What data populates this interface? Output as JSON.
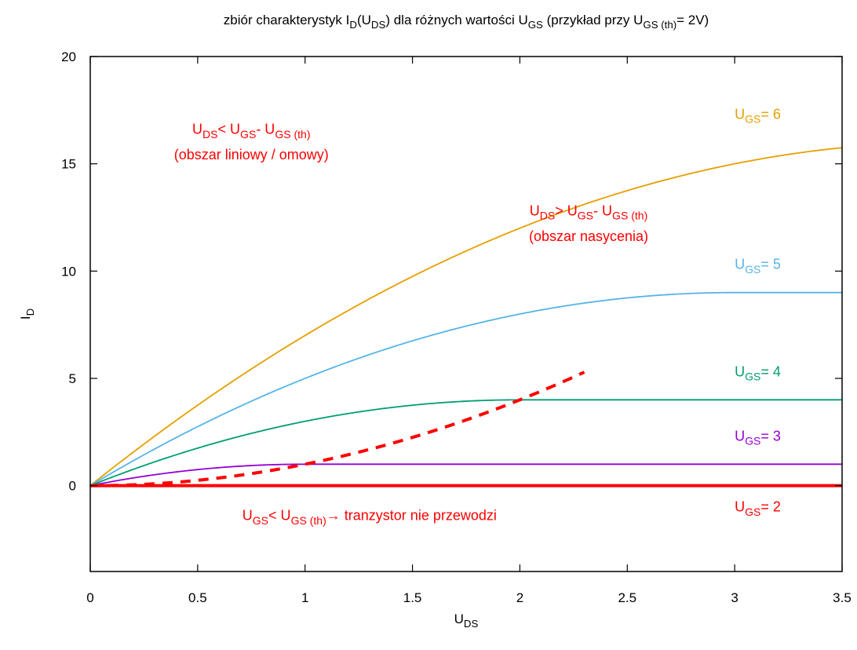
{
  "chart_data": {
    "type": "line",
    "title": {
      "parts": [
        {
          "t": "zbiór charakterystyk I"
        },
        {
          "t": "D",
          "sub": true
        },
        {
          "t": "(U"
        },
        {
          "t": "DS",
          "sub": true
        },
        {
          "t": ") dla różnych wartości U"
        },
        {
          "t": "GS",
          "sub": true
        },
        {
          "t": "  (przykład przy U"
        },
        {
          "t": "GS (th)",
          "sub": true
        },
        {
          "t": "= 2V)"
        }
      ]
    },
    "xlabel": {
      "main": "U",
      "sub": "DS"
    },
    "ylabel": {
      "main": "I",
      "sub": "D"
    },
    "xlim": [
      0,
      3.5
    ],
    "ylim": [
      -4,
      20
    ],
    "x_ticks": [
      0,
      0.5,
      1,
      1.5,
      2,
      2.5,
      3,
      3.5
    ],
    "x_tick_labels": [
      "0",
      "0.5",
      "1",
      "1.5",
      "2",
      "2.5",
      "3",
      "3.5"
    ],
    "y_ticks": [
      0,
      5,
      10,
      15,
      20
    ],
    "y_tick_labels": [
      "0",
      "5",
      "10",
      "15",
      "20"
    ],
    "grid": false,
    "threshold_voltage": 2,
    "series": [
      {
        "ugs": 6,
        "color": "#E69F00",
        "label_main": "U",
        "label_sub": "GS",
        "label_tail": "= 6",
        "label_x": 3.0,
        "label_y": 17.1
      },
      {
        "ugs": 5,
        "color": "#56B4E9",
        "label_main": "U",
        "label_sub": "GS",
        "label_tail": "= 5",
        "label_x": 3.0,
        "label_y": 10.1
      },
      {
        "ugs": 4,
        "color": "#009E73",
        "label_main": "U",
        "label_sub": "GS",
        "label_tail": "= 4",
        "label_x": 3.0,
        "label_y": 5.1
      },
      {
        "ugs": 3,
        "color": "#9400D3",
        "label_main": "U",
        "label_sub": "GS",
        "label_tail": "= 3",
        "label_x": 3.0,
        "label_y": 2.1
      },
      {
        "ugs": 2,
        "color": "#FF0000",
        "label_main": "U",
        "label_sub": "GS",
        "label_tail": "= 2",
        "label_x": 3.0,
        "label_y": -1.2
      }
    ],
    "boundary": {
      "type": "parabola",
      "color": "#FF0000",
      "dashed": true,
      "formula": "I_D = U_DS^2"
    },
    "annotations": [
      {
        "id": "linear-region-line1",
        "x": 0.75,
        "y": 16.4,
        "color": "#FF0000",
        "parts": [
          {
            "t": "U"
          },
          {
            "t": "DS",
            "sub": true
          },
          {
            "t": "< U"
          },
          {
            "t": "GS",
            "sub": true
          },
          {
            "t": "- U"
          },
          {
            "t": "GS (th)",
            "sub": true
          }
        ]
      },
      {
        "id": "linear-region-line2",
        "x": 0.75,
        "y": 15.2,
        "color": "#FF0000",
        "parts": [
          {
            "t": "(obszar liniowy / omowy)"
          }
        ]
      },
      {
        "id": "saturation-region-line1",
        "x": 2.32,
        "y": 12.6,
        "color": "#FF0000",
        "parts": [
          {
            "t": "U"
          },
          {
            "t": "DS",
            "sub": true
          },
          {
            "t": "> U"
          },
          {
            "t": "GS",
            "sub": true
          },
          {
            "t": "- U"
          },
          {
            "t": "GS (th)",
            "sub": true
          }
        ]
      },
      {
        "id": "saturation-region-line2",
        "x": 2.32,
        "y": 11.4,
        "color": "#FF0000",
        "parts": [
          {
            "t": "(obszar nasycenia)"
          }
        ]
      },
      {
        "id": "cutoff-note",
        "x": 1.3,
        "y": -1.6,
        "color": "#FF0000",
        "parts": [
          {
            "t": "U"
          },
          {
            "t": "GS",
            "sub": true
          },
          {
            "t": "< U"
          },
          {
            "t": "GS (th)",
            "sub": true
          },
          {
            "t": "→ tranzystor nie przewodzi"
          }
        ]
      }
    ]
  }
}
